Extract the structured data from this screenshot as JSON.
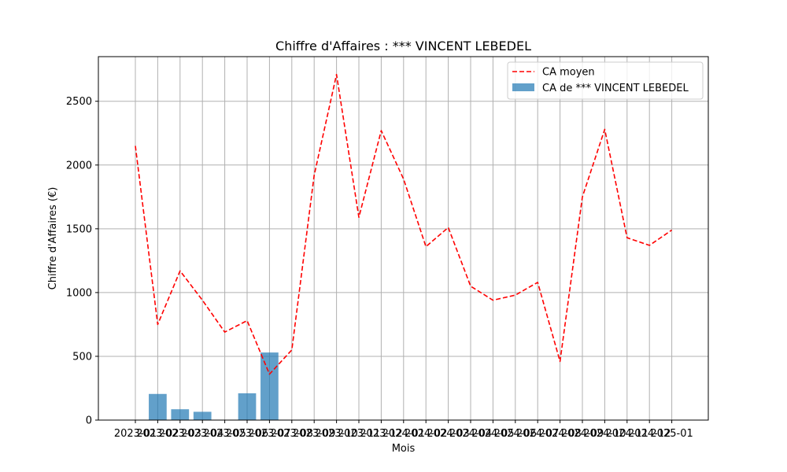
{
  "chart_data": {
    "type": "bar",
    "title": "Chiffre d'Affaires : *** VINCENT LEBEDEL",
    "xlabel": "Mois",
    "ylabel": "Chiffre d'Affaires (€)",
    "categories": [
      "2023-01",
      "2023-02",
      "2023-03",
      "2023-04",
      "2023-05",
      "2023-06",
      "2023-07",
      "2023-08",
      "2023-09",
      "2023-10",
      "2023-11",
      "2023-12",
      "2024-01",
      "2024-02",
      "2024-03",
      "2024-04",
      "2024-05",
      "2024-06",
      "2024-07",
      "2024-08",
      "2024-09",
      "2024-10",
      "2024-11",
      "2024-12",
      "2025-01"
    ],
    "ylim": [
      0,
      2850
    ],
    "yticks": [
      0,
      500,
      1000,
      1500,
      2000,
      2500
    ],
    "grid": true,
    "legend_position": "top-right",
    "series": [
      {
        "name": "CA moyen",
        "type": "line",
        "style": "dashed",
        "color": "#ff0000",
        "values": [
          2150,
          750,
          1170,
          940,
          690,
          780,
          360,
          550,
          1920,
          2710,
          1590,
          2270,
          1890,
          1360,
          1510,
          1050,
          940,
          980,
          1080,
          460,
          1750,
          2280,
          1430,
          1370,
          1490
        ]
      },
      {
        "name": "CA de *** VINCENT LEBEDEL",
        "type": "bar",
        "color": "#1f77b4",
        "opacity": 0.7,
        "values": [
          0,
          205,
          85,
          65,
          0,
          210,
          530,
          0,
          0,
          0,
          0,
          0,
          0,
          0,
          0,
          0,
          0,
          0,
          0,
          0,
          0,
          0,
          0,
          0,
          0
        ]
      }
    ]
  }
}
